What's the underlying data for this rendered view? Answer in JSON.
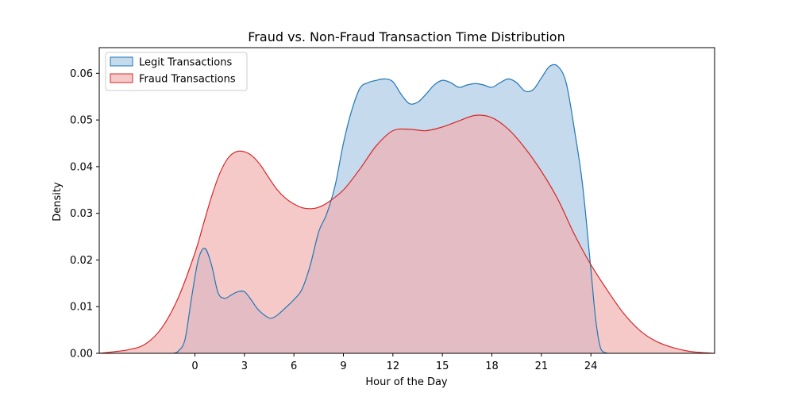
{
  "chart_data": {
    "type": "area",
    "title": "Fraud vs. Non-Fraud Transaction Time Distribution",
    "xlabel": "Hour of the Day",
    "ylabel": "Density",
    "xlim": [
      -5.8,
      31.5
    ],
    "ylim": [
      0,
      0.0655
    ],
    "xticks": [
      0,
      3,
      6,
      9,
      12,
      15,
      18,
      21,
      24
    ],
    "yticks": [
      0.0,
      0.01,
      0.02,
      0.03,
      0.04,
      0.05,
      0.06
    ],
    "ytick_labels": [
      "0.00",
      "0.01",
      "0.02",
      "0.03",
      "0.04",
      "0.05",
      "0.06"
    ],
    "grid": false,
    "legend_position": "top-left",
    "series": [
      {
        "name": "Legit Transactions",
        "color": "#1f77b4",
        "fill": "#a9c8e4",
        "x": [
          -1.3,
          -1.0,
          -0.6,
          -0.2,
          0.2,
          0.6,
          1.0,
          1.4,
          1.8,
          2.2,
          2.6,
          3.0,
          3.4,
          3.8,
          4.2,
          4.6,
          5.0,
          5.5,
          6.0,
          6.5,
          7.0,
          7.5,
          8.0,
          8.5,
          9.0,
          9.5,
          10.0,
          10.5,
          11.0,
          11.5,
          12.0,
          12.5,
          13.0,
          13.5,
          14.0,
          14.5,
          15.0,
          15.5,
          16.0,
          16.5,
          17.0,
          17.5,
          18.0,
          18.5,
          19.0,
          19.5,
          20.0,
          20.5,
          21.0,
          21.5,
          22.0,
          22.5,
          23.0,
          23.5,
          24.0,
          24.3,
          24.6,
          25.0
        ],
        "y": [
          0.0,
          0.0005,
          0.003,
          0.012,
          0.02,
          0.0225,
          0.019,
          0.013,
          0.0118,
          0.0125,
          0.0132,
          0.0132,
          0.0115,
          0.0095,
          0.0082,
          0.0075,
          0.0082,
          0.0098,
          0.0115,
          0.0138,
          0.019,
          0.026,
          0.03,
          0.036,
          0.045,
          0.052,
          0.0568,
          0.058,
          0.0585,
          0.0588,
          0.0582,
          0.0555,
          0.0535,
          0.0538,
          0.0555,
          0.0575,
          0.0585,
          0.058,
          0.057,
          0.0575,
          0.0578,
          0.0575,
          0.057,
          0.058,
          0.0588,
          0.058,
          0.0562,
          0.0565,
          0.059,
          0.0615,
          0.0615,
          0.058,
          0.048,
          0.036,
          0.018,
          0.007,
          0.001,
          0.0
        ]
      },
      {
        "name": "Fraud Transactions",
        "color": "#d62728",
        "fill": "#f1b0b0",
        "x": [
          -5.8,
          -5.0,
          -4.0,
          -3.0,
          -2.0,
          -1.0,
          0.0,
          0.5,
          1.0,
          1.5,
          2.0,
          2.5,
          3.0,
          3.5,
          4.0,
          4.5,
          5.0,
          5.5,
          6.0,
          6.5,
          7.0,
          7.5,
          8.0,
          9.0,
          10.0,
          11.0,
          12.0,
          13.0,
          14.0,
          15.0,
          16.0,
          17.0,
          18.0,
          19.0,
          20.0,
          21.0,
          22.0,
          23.0,
          24.0,
          25.0,
          26.0,
          27.0,
          28.0,
          29.0,
          30.0,
          31.0,
          31.5
        ],
        "y": [
          0.0,
          0.0003,
          0.0008,
          0.002,
          0.0055,
          0.012,
          0.0215,
          0.0275,
          0.0335,
          0.0385,
          0.0418,
          0.0432,
          0.0432,
          0.0422,
          0.0402,
          0.0375,
          0.035,
          0.0332,
          0.032,
          0.0312,
          0.031,
          0.0313,
          0.0322,
          0.035,
          0.0395,
          0.0445,
          0.0477,
          0.048,
          0.0477,
          0.0485,
          0.0498,
          0.051,
          0.0505,
          0.048,
          0.044,
          0.039,
          0.033,
          0.0255,
          0.019,
          0.0135,
          0.0085,
          0.0048,
          0.0025,
          0.0012,
          0.0004,
          0.0001,
          0.0
        ]
      }
    ]
  }
}
